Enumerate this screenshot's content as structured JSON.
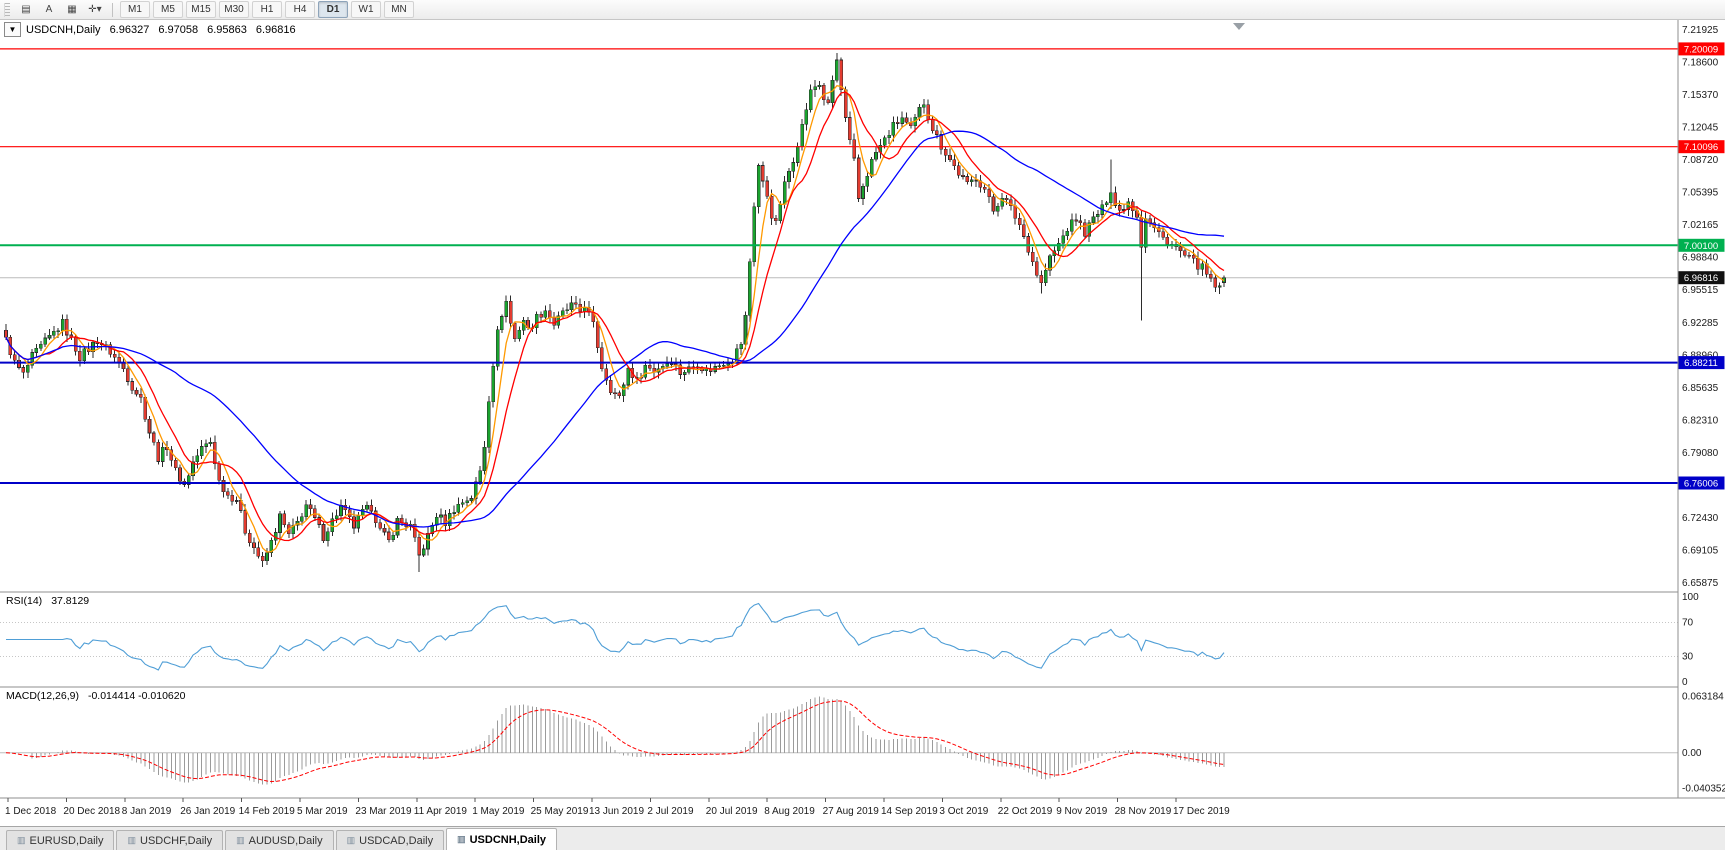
{
  "toolbar": {
    "icons": [
      {
        "id": "chart-list",
        "glyph": "▤"
      },
      {
        "id": "text-label-tool",
        "glyph": "A"
      },
      {
        "id": "chart-window",
        "glyph": "▦"
      },
      {
        "id": "crosshair-tool",
        "glyph": "✛▾"
      }
    ],
    "timeframes": [
      "M1",
      "M5",
      "M15",
      "M30",
      "H1",
      "H4",
      "D1",
      "W1",
      "MN"
    ],
    "active_timeframe": "D1"
  },
  "chart": {
    "symbol_period": "USDCNH,Daily",
    "open": "6.96327",
    "high": "6.97058",
    "low": "6.95863",
    "close": "6.96816"
  },
  "tabs": {
    "items": [
      "EURUSD,Daily",
      "USDCHF,Daily",
      "AUDUSD,Daily",
      "USDCAD,Daily",
      "USDCNH,Daily"
    ],
    "active": "USDCNH,Daily"
  },
  "chart_data": {
    "type": "candlestick",
    "symbol": "USDCNH",
    "timeframe": "Daily",
    "last_ohlc": {
      "open": 6.96327,
      "high": 6.97058,
      "low": 6.95863,
      "close": 6.96816
    },
    "price_axis_labels": [
      "7.21925",
      "7.18600",
      "7.15370",
      "7.12045",
      "7.08720",
      "7.05395",
      "7.02165",
      "6.98840",
      "6.95515",
      "6.92285",
      "6.88960",
      "6.85635",
      "6.82310",
      "6.79080",
      "6.75755",
      "6.72430",
      "6.69105",
      "6.65875"
    ],
    "date_labels": [
      "1 Dec 2018",
      "20 Dec 2018",
      "8 Jan 2019",
      "26 Jan 2019",
      "14 Feb 2019",
      "5 Mar 2019",
      "23 Mar 2019",
      "11 Apr 2019",
      "1 May 2019",
      "25 May 2019",
      "13 Jun 2019",
      "2 Jul 2019",
      "20 Jul 2019",
      "8 Aug 2019",
      "27 Aug 2019",
      "14 Sep 2019",
      "3 Oct 2019",
      "22 Oct 2019",
      "9 Nov 2019",
      "28 Nov 2019",
      "17 Dec 2019"
    ],
    "horizontal_levels": [
      {
        "price": 7.20009,
        "label": "7.20009",
        "color": "#ff0000",
        "width": 1.2
      },
      {
        "price": 7.10096,
        "label": "7.10096",
        "color": "#ff0000",
        "width": 1.2
      },
      {
        "price": 7.001,
        "label": "7.00100",
        "color": "#00b050",
        "width": 2
      },
      {
        "price": 6.88211,
        "label": "6.88211",
        "color": "#0000c8",
        "width": 2
      },
      {
        "price": 6.76006,
        "label": "6.76006",
        "color": "#0000c8",
        "width": 2
      }
    ],
    "current_price": {
      "value": 6.96816,
      "label": "6.96816",
      "line_color": "#bcbcbc",
      "badge_color": "#111111"
    },
    "n_candles": 281,
    "close_anchors": [
      [
        0,
        6.905
      ],
      [
        2,
        6.882
      ],
      [
        4,
        6.87
      ],
      [
        6,
        6.888
      ],
      [
        9,
        6.903
      ],
      [
        13,
        6.922
      ],
      [
        15,
        6.905
      ],
      [
        17,
        6.888
      ],
      [
        19,
        6.896
      ],
      [
        21,
        6.905
      ],
      [
        24,
        6.893
      ],
      [
        27,
        6.876
      ],
      [
        29,
        6.858
      ],
      [
        31,
        6.846
      ],
      [
        33,
        6.812
      ],
      [
        35,
        6.786
      ],
      [
        37,
        6.798
      ],
      [
        39,
        6.772
      ],
      [
        41,
        6.758
      ],
      [
        43,
        6.781
      ],
      [
        45,
        6.795
      ],
      [
        47,
        6.802
      ],
      [
        49,
        6.762
      ],
      [
        51,
        6.748
      ],
      [
        53,
        6.744
      ],
      [
        55,
        6.712
      ],
      [
        57,
        6.695
      ],
      [
        59,
        6.678
      ],
      [
        61,
        6.7
      ],
      [
        63,
        6.726
      ],
      [
        65,
        6.707
      ],
      [
        67,
        6.72
      ],
      [
        69,
        6.738
      ],
      [
        71,
        6.723
      ],
      [
        73,
        6.706
      ],
      [
        75,
        6.722
      ],
      [
        77,
        6.736
      ],
      [
        80,
        6.716
      ],
      [
        82,
        6.73
      ],
      [
        84,
        6.736
      ],
      [
        86,
        6.712
      ],
      [
        88,
        6.701
      ],
      [
        90,
        6.722
      ],
      [
        93,
        6.716
      ],
      [
        95,
        6.686
      ],
      [
        97,
        6.706
      ],
      [
        99,
        6.728
      ],
      [
        101,
        6.72
      ],
      [
        103,
        6.734
      ],
      [
        105,
        6.741
      ],
      [
        107,
        6.746
      ],
      [
        109,
        6.772
      ],
      [
        110,
        6.798
      ],
      [
        111,
        6.846
      ],
      [
        112,
        6.882
      ],
      [
        113,
        6.912
      ],
      [
        114,
        6.932
      ],
      [
        115,
        6.944
      ],
      [
        116,
        6.922
      ],
      [
        117,
        6.906
      ],
      [
        118,
        6.917
      ],
      [
        119,
        6.926
      ],
      [
        120,
        6.915
      ],
      [
        122,
        6.928
      ],
      [
        124,
        6.936
      ],
      [
        126,
        6.921
      ],
      [
        128,
        6.932
      ],
      [
        130,
        6.94
      ],
      [
        132,
        6.934
      ],
      [
        133,
        6.941
      ],
      [
        135,
        6.92
      ],
      [
        137,
        6.878
      ],
      [
        139,
        6.856
      ],
      [
        141,
        6.846
      ],
      [
        143,
        6.876
      ],
      [
        145,
        6.864
      ],
      [
        147,
        6.879
      ],
      [
        149,
        6.874
      ],
      [
        151,
        6.88
      ],
      [
        153,
        6.885
      ],
      [
        155,
        6.872
      ],
      [
        157,
        6.876
      ],
      [
        159,
        6.881
      ],
      [
        161,
        6.874
      ],
      [
        163,
        6.877
      ],
      [
        165,
        6.883
      ],
      [
        167,
        6.886
      ],
      [
        169,
        6.902
      ],
      [
        170,
        6.928
      ],
      [
        171,
        6.985
      ],
      [
        172,
        7.042
      ],
      [
        173,
        7.082
      ],
      [
        174,
        7.064
      ],
      [
        175,
        7.052
      ],
      [
        176,
        7.032
      ],
      [
        177,
        7.022
      ],
      [
        178,
        7.044
      ],
      [
        179,
        7.062
      ],
      [
        180,
        7.076
      ],
      [
        181,
        7.089
      ],
      [
        182,
        7.106
      ],
      [
        183,
        7.122
      ],
      [
        184,
        7.14
      ],
      [
        185,
        7.156
      ],
      [
        186,
        7.162
      ],
      [
        187,
        7.164
      ],
      [
        188,
        7.15
      ],
      [
        189,
        7.142
      ],
      [
        190,
        7.168
      ],
      [
        191,
        7.188
      ],
      [
        192,
        7.158
      ],
      [
        193,
        7.128
      ],
      [
        194,
        7.104
      ],
      [
        195,
        7.086
      ],
      [
        196,
        7.048
      ],
      [
        197,
        7.062
      ],
      [
        198,
        7.074
      ],
      [
        199,
        7.086
      ],
      [
        200,
        7.095
      ],
      [
        202,
        7.108
      ],
      [
        204,
        7.122
      ],
      [
        206,
        7.13
      ],
      [
        208,
        7.118
      ],
      [
        210,
        7.138
      ],
      [
        211,
        7.146
      ],
      [
        212,
        7.132
      ],
      [
        213,
        7.12
      ],
      [
        215,
        7.102
      ],
      [
        217,
        7.088
      ],
      [
        219,
        7.074
      ],
      [
        221,
        7.062
      ],
      [
        223,
        7.07
      ],
      [
        225,
        7.058
      ],
      [
        227,
        7.036
      ],
      [
        229,
        7.052
      ],
      [
        231,
        7.038
      ],
      [
        233,
        7.022
      ],
      [
        235,
        6.998
      ],
      [
        237,
        6.972
      ],
      [
        238,
        6.962
      ],
      [
        239,
        6.976
      ],
      [
        240,
        6.988
      ],
      [
        242,
        7.002
      ],
      [
        244,
        7.018
      ],
      [
        246,
        7.028
      ],
      [
        248,
        7.014
      ],
      [
        250,
        7.028
      ],
      [
        252,
        7.038
      ],
      [
        254,
        7.058
      ],
      [
        255,
        7.042
      ],
      [
        256,
        7.036
      ],
      [
        258,
        7.046
      ],
      [
        260,
        7.032
      ],
      [
        261,
        7.002
      ],
      [
        262,
        7.03
      ],
      [
        264,
        7.018
      ],
      [
        266,
        7.008
      ],
      [
        267,
        7.006
      ],
      [
        269,
        6.998
      ],
      [
        271,
        6.99
      ],
      [
        273,
        6.984
      ],
      [
        275,
        6.978
      ],
      [
        277,
        6.964
      ],
      [
        279,
        6.956
      ],
      [
        280,
        6.968
      ]
    ],
    "wick_events": [
      {
        "i": 95,
        "low": 6.67
      },
      {
        "i": 191,
        "high": 7.196
      },
      {
        "i": 238,
        "low": 6.952
      },
      {
        "i": 254,
        "high": 7.088
      },
      {
        "i": 261,
        "low": 6.925
      }
    ],
    "moving_averages": [
      {
        "name": "ma-fast",
        "period": 5,
        "color": "#ff9900"
      },
      {
        "name": "ma-medium",
        "period": 10,
        "color": "#ff0000"
      },
      {
        "name": "ma-slow",
        "period": 40,
        "color": "#0000ff"
      }
    ],
    "rsi": {
      "label": "RSI(14)",
      "period": 14,
      "current": "37.8129",
      "axis_labels": [
        "100",
        "70",
        "30",
        "0"
      ],
      "axis_values": [
        100,
        70,
        30,
        0
      ],
      "levels": [
        70,
        30
      ],
      "color": "#4f9ed6"
    },
    "macd": {
      "label": "MACD(12,26,9)",
      "params": [
        12,
        26,
        9
      ],
      "values_text": "-0.014414 -0.010620",
      "axis_labels": [
        "0.063184",
        "0.00",
        "-0.040352"
      ],
      "axis_values": [
        0.063184,
        0.0,
        -0.040352
      ],
      "histogram_color": "#9b9b9b",
      "signal_color": "#ff0000"
    },
    "candle_colors": {
      "up": "#19a22e",
      "down": "#e23b30",
      "outline": "#2b2b2b"
    }
  }
}
